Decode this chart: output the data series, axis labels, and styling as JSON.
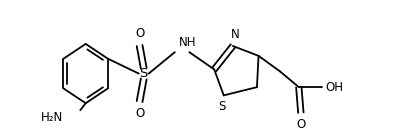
{
  "figsize": [
    4.16,
    1.36
  ],
  "dpi": 100,
  "bg_color": "#ffffff",
  "bond_color": "#000000",
  "bond_lw": 1.3,
  "text_color": "#000000",
  "xlim": [
    0,
    10
  ],
  "ylim": [
    0,
    3.27
  ],
  "font_size": 8.5
}
